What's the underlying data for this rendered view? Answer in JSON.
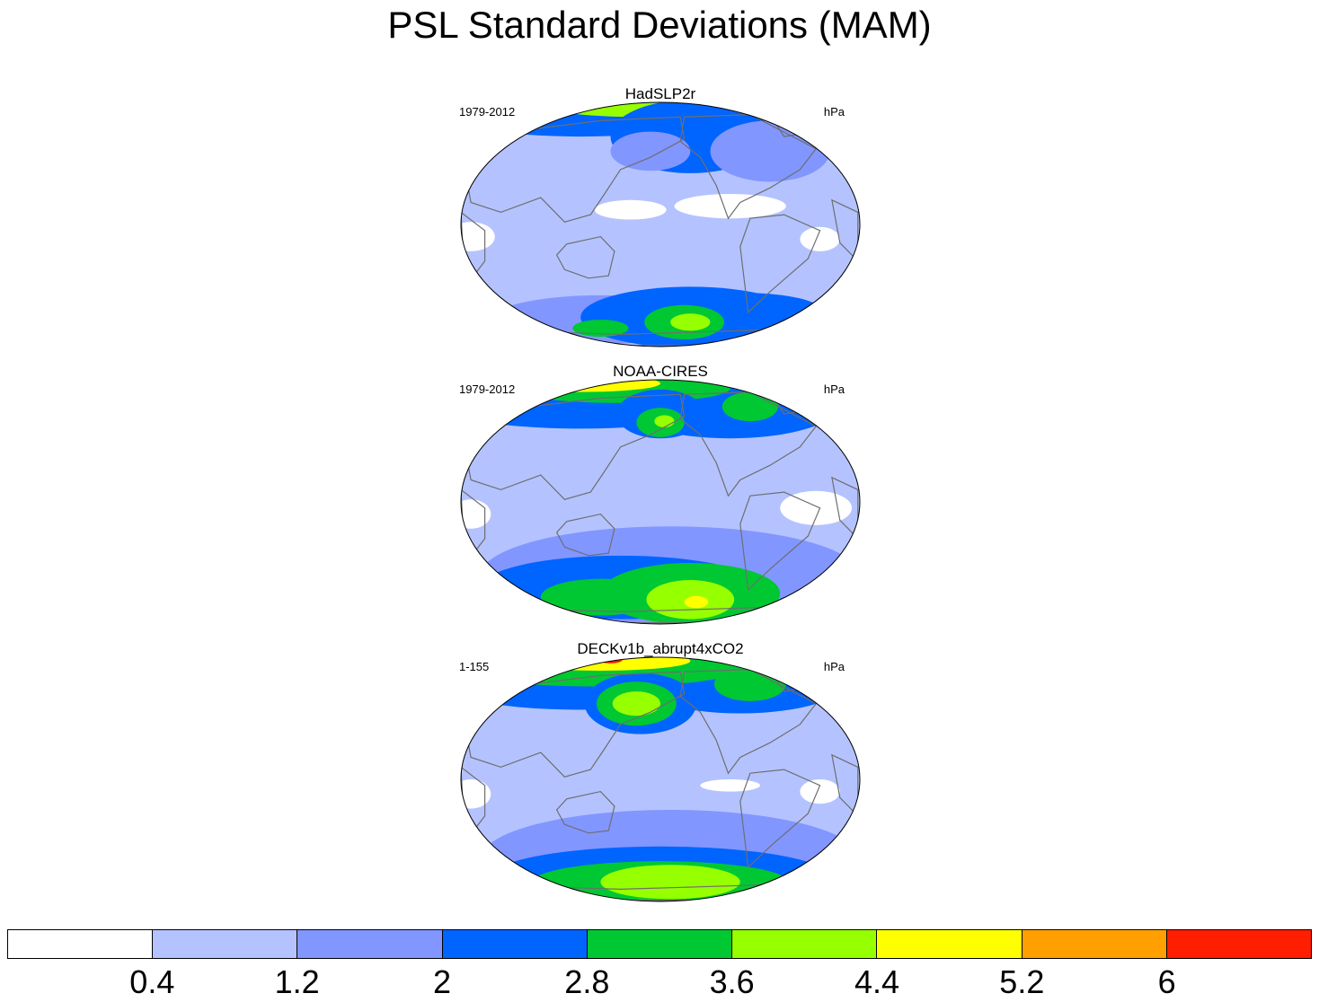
{
  "title": "PSL Standard Deviations (MAM)",
  "panels": [
    {
      "title": "HadSLP2r",
      "left_string": "1979-2012",
      "right_string": "hPa",
      "variant": 0
    },
    {
      "title": "NOAA-CIRES",
      "left_string": "1979-2012",
      "right_string": "hPa",
      "variant": 1
    },
    {
      "title": "DECKv1b_abrupt4xCO2",
      "left_string": "1-155",
      "right_string": "hPa",
      "variant": 2
    }
  ],
  "colorbar": {
    "colors": [
      "#ffffff",
      "#b4c3ff",
      "#8296ff",
      "#0064ff",
      "#00c832",
      "#96ff00",
      "#ffff00",
      "#ffa000",
      "#ff1e00"
    ],
    "labels": [
      "0.4",
      "1.2",
      "2",
      "2.8",
      "3.6",
      "4.4",
      "5.2",
      "6"
    ]
  },
  "land_outline_color": "#6e6e6e"
}
